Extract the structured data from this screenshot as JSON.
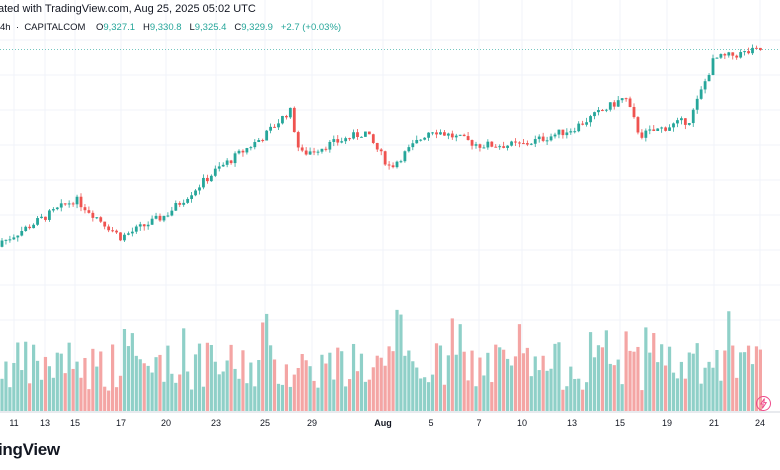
{
  "header": {
    "credit": "ated with TradingView.com, Aug 25, 2025 05:02 UTC",
    "interval": "4h",
    "source": "CAPITALCOM",
    "o_label": "O",
    "o_value": "9,327.1",
    "h_label": "H",
    "h_value": "9,330.8",
    "l_label": "L",
    "l_value": "9,325.4",
    "c_label": "C",
    "c_value": "9,329.9",
    "change": "+2.7 (+0.03%)"
  },
  "brand": "ingView",
  "colors": {
    "up": "#26a69a",
    "down": "#ef5350",
    "vol_up": "#8fd0c8",
    "vol_down": "#f4a5a4",
    "grid": "#f0f3fa"
  },
  "chart_data": {
    "type": "candlestick",
    "title": "4h · CAPITALCOM",
    "x_tick_labels": [
      "11",
      "13",
      "15",
      "17",
      "20",
      "23",
      "25",
      "29",
      "Aug",
      "5",
      "7",
      "10",
      "13",
      "15",
      "19",
      "21",
      "24"
    ],
    "y_range": [
      8480,
      9360
    ],
    "anchor_closes": [
      {
        "date": "11",
        "close": 8730
      },
      {
        "date": "15",
        "close": 8860
      },
      {
        "date": "17",
        "close": 8740
      },
      {
        "date": "20",
        "close": 8810
      },
      {
        "date": "23",
        "close": 8950
      },
      {
        "date": "25",
        "close": 9060
      },
      {
        "date": "27",
        "close": 9140
      },
      {
        "date": "28",
        "close": 9000
      },
      {
        "date": "Aug 1",
        "close": 9070
      },
      {
        "date": "Aug 2",
        "close": 8960
      },
      {
        "date": "5",
        "close": 9080
      },
      {
        "date": "7",
        "close": 9030
      },
      {
        "date": "10",
        "close": 9030
      },
      {
        "date": "13",
        "close": 9080
      },
      {
        "date": "15",
        "close": 9180
      },
      {
        "date": "17",
        "close": 9060
      },
      {
        "date": "19",
        "close": 9110
      },
      {
        "date": "21",
        "close": 9300
      },
      {
        "date": "24",
        "close": 9329.9
      }
    ],
    "last_price": 9329.9,
    "volume": "relative volume bars, colored by candle direction"
  }
}
